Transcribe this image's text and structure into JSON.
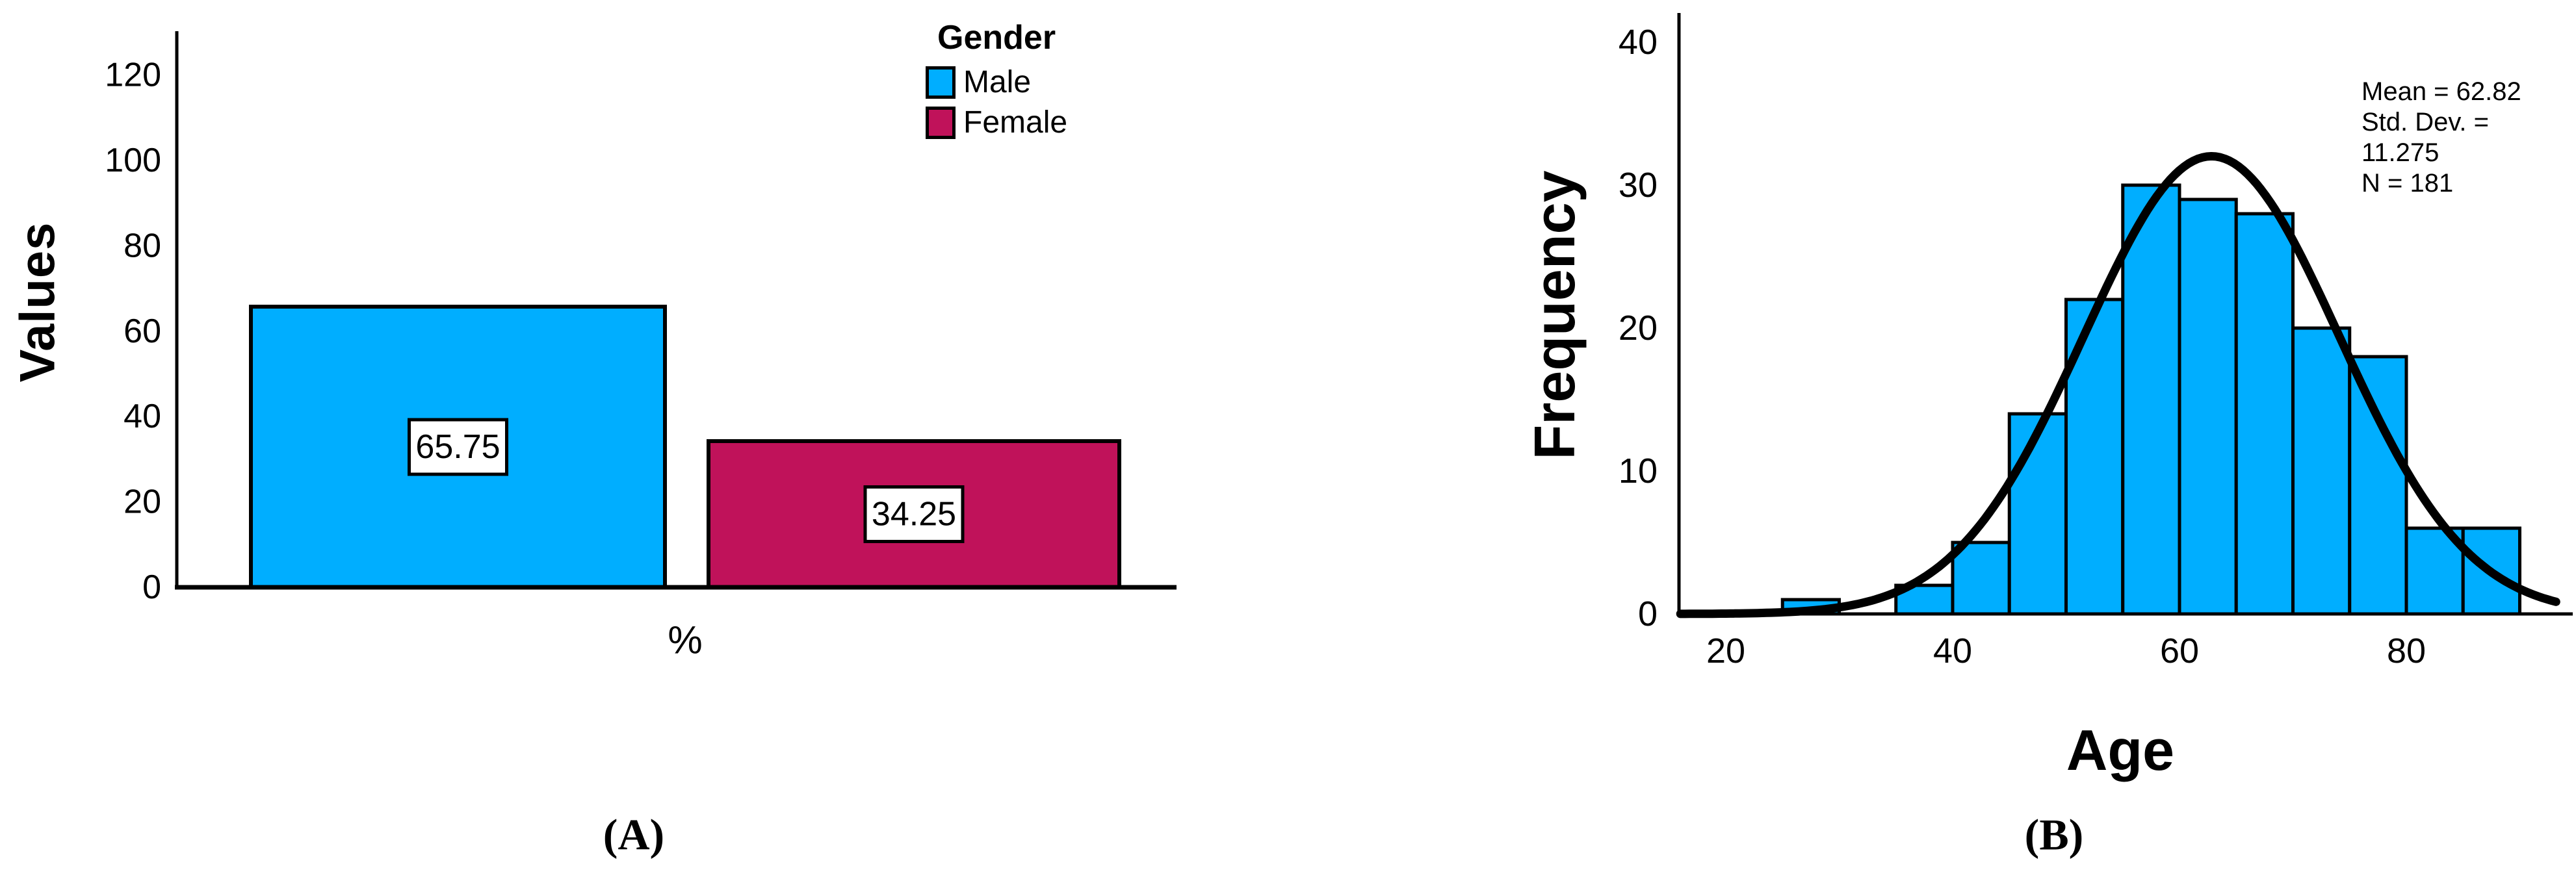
{
  "background_color": "#FFFFFF",
  "axis_color": "#000000",
  "chart_data": [
    {
      "id": "gender-bar-chart",
      "type": "bar",
      "caption": "(A)",
      "xlabel": "%",
      "ylabel": "Values",
      "categories": [
        "Male",
        "Female"
      ],
      "values": [
        65.75,
        34.25
      ],
      "bar_labels": [
        "65.75",
        "34.25"
      ],
      "colors": [
        "#00AEFF",
        "#C0125A"
      ],
      "ylim": [
        0,
        130
      ],
      "yticks": [
        "0",
        "20",
        "40",
        "60",
        "80",
        "100",
        "120"
      ],
      "ytick_values": [
        0,
        20,
        40,
        60,
        80,
        100,
        120
      ],
      "grid": false,
      "legend": {
        "title": "Gender",
        "position": "top-right",
        "entries": [
          {
            "label": "Male",
            "color": "#00AEFF"
          },
          {
            "label": "Female",
            "color": "#C0125A"
          }
        ]
      }
    },
    {
      "id": "age-histogram",
      "type": "histogram",
      "caption": "(B)",
      "xlabel": "Age",
      "ylabel": "Frequency",
      "bin_width": 5,
      "bin_start": 25,
      "bin_edges": [
        25,
        30,
        35,
        40,
        45,
        50,
        55,
        60,
        65,
        70,
        75,
        80,
        85,
        90
      ],
      "frequencies": [
        1,
        0,
        2,
        5,
        14,
        22,
        30,
        29,
        28,
        20,
        18,
        6,
        6
      ],
      "bar_color": "#00AEFF",
      "xlim": [
        16,
        93.5
      ],
      "ylim": [
        0,
        42
      ],
      "xticks": [
        "20",
        "40",
        "60",
        "80"
      ],
      "xtick_values": [
        20,
        40,
        60,
        80
      ],
      "yticks": [
        "0",
        "10",
        "20",
        "30",
        "40"
      ],
      "ytick_values": [
        0,
        10,
        20,
        30,
        40
      ],
      "grid": false,
      "normal_curve": {
        "mean": 62.82,
        "std_dev": 11.275,
        "n": 181,
        "color": "#000000"
      },
      "annotation": {
        "lines": [
          "Mean = 62.82",
          "Std. Dev. =",
          "11.275",
          "N = 181"
        ]
      }
    }
  ]
}
